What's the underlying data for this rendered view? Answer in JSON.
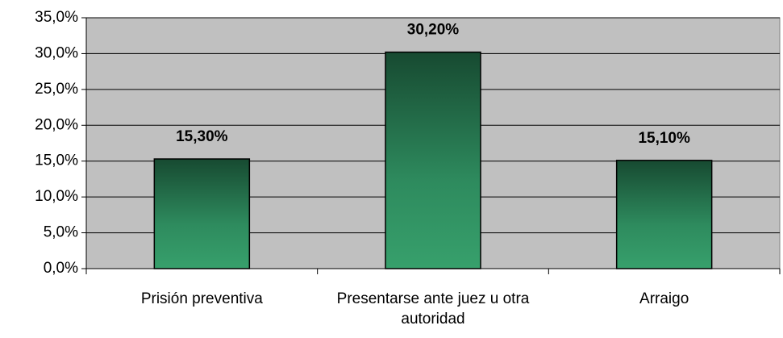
{
  "chart_data": {
    "type": "bar",
    "categories": [
      "Prisión preventiva",
      "Presentarse ante juez u otra autoridad",
      "Arraigo"
    ],
    "values": [
      15.3,
      30.2,
      15.1
    ],
    "value_labels": [
      "15,30%",
      "30,20%",
      "15,10%"
    ],
    "color": "#2e8b5e",
    "ylim": [
      0,
      35
    ],
    "yticks": [
      {
        "value": 0,
        "label": "0,0%"
      },
      {
        "value": 5,
        "label": "5,0%"
      },
      {
        "value": 10,
        "label": "10,0%"
      },
      {
        "value": 15,
        "label": "15,0%"
      },
      {
        "value": 20,
        "label": "20,0%"
      },
      {
        "value": 25,
        "label": "25,0%"
      },
      {
        "value": 30,
        "label": "30,0%"
      },
      {
        "value": 35,
        "label": "35,0%"
      }
    ],
    "grid": true
  }
}
